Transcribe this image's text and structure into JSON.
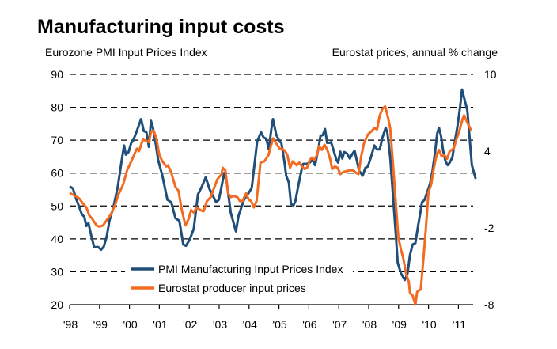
{
  "chart_data": {
    "type": "line",
    "title": "Manufacturing input costs",
    "left_axis_label": "Eurozone PMI Input Prices Index",
    "right_axis_label": "Eurostat prices, annual % change",
    "left_ylim": [
      20,
      90
    ],
    "left_yticks": [
      "90",
      "80",
      "70",
      "60",
      "50",
      "40",
      "30",
      "20"
    ],
    "left_ytick_values": [
      90,
      80,
      70,
      60,
      50,
      40,
      30,
      20
    ],
    "right_ylim": [
      -8,
      10
    ],
    "right_yticks": [
      "10",
      "4",
      "-2",
      "-8"
    ],
    "right_ytick_values": [
      10,
      4,
      -2,
      -8
    ],
    "xlim": [
      1998.0,
      2011.6
    ],
    "xticks": [
      "'98",
      "'99",
      "'00",
      "'01",
      "'02",
      "'03",
      "'04",
      "'05",
      "'06",
      "'07",
      "'08",
      "'09",
      "'10",
      "'11"
    ],
    "xtick_values": [
      1998,
      1999,
      2000,
      2001,
      2002,
      2003,
      2004,
      2005,
      2006,
      2007,
      2008,
      2009,
      2010,
      2011
    ],
    "grid": "horizontal dashed",
    "legend_position": "bottom-center",
    "series": [
      {
        "name": "PMI Manufacturing Input Prices Index",
        "axis": "left",
        "color": "#1f4e79",
        "points": [
          [
            1998.03,
            55.8
          ],
          [
            1998.11,
            55.3
          ],
          [
            1998.23,
            51.9
          ],
          [
            1998.41,
            47.5
          ],
          [
            1998.49,
            46.7
          ],
          [
            1998.56,
            43.9
          ],
          [
            1998.63,
            44.8
          ],
          [
            1998.71,
            41.5
          ],
          [
            1998.82,
            37.5
          ],
          [
            1998.96,
            37.5
          ],
          [
            1999.05,
            36.7
          ],
          [
            1999.14,
            37.6
          ],
          [
            1999.24,
            40.7
          ],
          [
            1999.33,
            45.5
          ],
          [
            1999.46,
            49.5
          ],
          [
            1999.61,
            55.9
          ],
          [
            1999.73,
            63.2
          ],
          [
            1999.82,
            68.4
          ],
          [
            1999.88,
            65.6
          ],
          [
            1999.97,
            66.4
          ],
          [
            2000.06,
            69.2
          ],
          [
            2000.12,
            69.8
          ],
          [
            2000.23,
            72.4
          ],
          [
            2000.39,
            76.4
          ],
          [
            2000.48,
            72.8
          ],
          [
            2000.57,
            72.4
          ],
          [
            2000.65,
            68.0
          ],
          [
            2000.72,
            75.9
          ],
          [
            2000.79,
            73.6
          ],
          [
            2000.88,
            68.8
          ],
          [
            2000.96,
            64.0
          ],
          [
            2001.1,
            59.2
          ],
          [
            2001.27,
            51.9
          ],
          [
            2001.4,
            51.1
          ],
          [
            2001.54,
            46.3
          ],
          [
            2001.67,
            45.5
          ],
          [
            2001.8,
            38.3
          ],
          [
            2001.89,
            37.9
          ],
          [
            2002.02,
            39.9
          ],
          [
            2002.15,
            43.1
          ],
          [
            2002.29,
            53.5
          ],
          [
            2002.42,
            55.9
          ],
          [
            2002.55,
            58.7
          ],
          [
            2002.68,
            55.1
          ],
          [
            2002.77,
            53.5
          ],
          [
            2002.9,
            51.1
          ],
          [
            2002.99,
            51.9
          ],
          [
            2003.08,
            55.9
          ],
          [
            2003.17,
            60.0
          ],
          [
            2003.25,
            57.5
          ],
          [
            2003.39,
            47.9
          ],
          [
            2003.56,
            42.3
          ],
          [
            2003.65,
            47.1
          ],
          [
            2003.83,
            51.9
          ],
          [
            2004.01,
            54.3
          ],
          [
            2004.09,
            55.5
          ],
          [
            2004.27,
            69.6
          ],
          [
            2004.4,
            72.4
          ],
          [
            2004.49,
            70.8
          ],
          [
            2004.58,
            70.4
          ],
          [
            2004.66,
            67.2
          ],
          [
            2004.75,
            73.6
          ],
          [
            2004.8,
            76.4
          ],
          [
            2004.91,
            71.6
          ],
          [
            2005.02,
            69.6
          ],
          [
            2005.08,
            69.2
          ],
          [
            2005.18,
            63.6
          ],
          [
            2005.24,
            59.2
          ],
          [
            2005.33,
            57.1
          ],
          [
            2005.4,
            50.7
          ],
          [
            2005.48,
            50.1
          ],
          [
            2005.55,
            51.5
          ],
          [
            2005.64,
            55.9
          ],
          [
            2005.75,
            60.7
          ],
          [
            2005.81,
            62.8
          ],
          [
            2005.92,
            62.8
          ],
          [
            2006.03,
            63.2
          ],
          [
            2006.12,
            64.0
          ],
          [
            2006.21,
            62.4
          ],
          [
            2006.33,
            68.0
          ],
          [
            2006.39,
            71.3
          ],
          [
            2006.47,
            71.6
          ],
          [
            2006.54,
            73.4
          ],
          [
            2006.61,
            69.2
          ],
          [
            2006.68,
            69.2
          ],
          [
            2006.74,
            69.4
          ],
          [
            2006.83,
            66.8
          ],
          [
            2006.92,
            64.0
          ],
          [
            2006.98,
            63.2
          ],
          [
            2007.05,
            66.5
          ],
          [
            2007.12,
            64.4
          ],
          [
            2007.18,
            66.4
          ],
          [
            2007.27,
            66.0
          ],
          [
            2007.37,
            64.4
          ],
          [
            2007.44,
            65.6
          ],
          [
            2007.53,
            66.8
          ],
          [
            2007.62,
            63.2
          ],
          [
            2007.68,
            60.7
          ],
          [
            2007.8,
            59.2
          ],
          [
            2007.89,
            61.6
          ],
          [
            2007.97,
            62.0
          ],
          [
            2008.06,
            64.4
          ],
          [
            2008.19,
            68.4
          ],
          [
            2008.28,
            67.2
          ],
          [
            2008.37,
            67.2
          ],
          [
            2008.46,
            70.8
          ],
          [
            2008.57,
            73.8
          ],
          [
            2008.63,
            72.0
          ],
          [
            2008.72,
            64.8
          ],
          [
            2008.81,
            53.5
          ],
          [
            2008.9,
            42.3
          ],
          [
            2008.97,
            32.7
          ],
          [
            2009.08,
            29.5
          ],
          [
            2009.21,
            27.5
          ],
          [
            2009.3,
            29.5
          ],
          [
            2009.38,
            35.1
          ],
          [
            2009.47,
            38.3
          ],
          [
            2009.56,
            38.7
          ],
          [
            2009.65,
            43.9
          ],
          [
            2009.74,
            48.7
          ],
          [
            2009.78,
            51.1
          ],
          [
            2009.87,
            51.9
          ],
          [
            2009.96,
            54.3
          ],
          [
            2010.05,
            56.7
          ],
          [
            2010.13,
            60.4
          ],
          [
            2010.22,
            66.4
          ],
          [
            2010.29,
            72.0
          ],
          [
            2010.35,
            73.8
          ],
          [
            2010.42,
            71.2
          ],
          [
            2010.49,
            66.8
          ],
          [
            2010.57,
            63.6
          ],
          [
            2010.64,
            62.4
          ],
          [
            2010.71,
            63.2
          ],
          [
            2010.8,
            64.8
          ],
          [
            2010.88,
            69.6
          ],
          [
            2010.97,
            74.4
          ],
          [
            2011.06,
            80.4
          ],
          [
            2011.12,
            85.4
          ],
          [
            2011.3,
            79.0
          ],
          [
            2011.45,
            62.4
          ],
          [
            2011.57,
            58.5
          ]
        ]
      },
      {
        "name": "Eurostat producer input prices",
        "axis": "right",
        "color": "#f26b21",
        "points": [
          [
            1998.03,
            0.7
          ],
          [
            1998.19,
            0.5
          ],
          [
            1998.32,
            0.3
          ],
          [
            1998.45,
            -0.1
          ],
          [
            1998.56,
            -0.4
          ],
          [
            1998.65,
            -1.0
          ],
          [
            1998.76,
            -1.3
          ],
          [
            1998.9,
            -1.8
          ],
          [
            1998.99,
            -1.9
          ],
          [
            1999.12,
            -1.8
          ],
          [
            1999.24,
            -1.4
          ],
          [
            1999.39,
            -0.9
          ],
          [
            1999.52,
            -0.2
          ],
          [
            1999.63,
            0.6
          ],
          [
            1999.79,
            1.4
          ],
          [
            1999.92,
            2.5
          ],
          [
            2000.06,
            3.2
          ],
          [
            2000.19,
            3.9
          ],
          [
            2000.25,
            4.2
          ],
          [
            2000.32,
            4.0
          ],
          [
            2000.45,
            4.9
          ],
          [
            2000.57,
            4.8
          ],
          [
            2000.65,
            4.7
          ],
          [
            2000.72,
            5.5
          ],
          [
            2000.81,
            5.6
          ],
          [
            2000.9,
            5.0
          ],
          [
            2001.0,
            3.7
          ],
          [
            2001.1,
            3.2
          ],
          [
            2001.23,
            2.8
          ],
          [
            2001.29,
            2.9
          ],
          [
            2001.4,
            2.3
          ],
          [
            2001.54,
            1.2
          ],
          [
            2001.64,
            0.9
          ],
          [
            2001.75,
            -0.6
          ],
          [
            2001.87,
            -1.8
          ],
          [
            2001.98,
            -1.3
          ],
          [
            2002.06,
            -0.6
          ],
          [
            2002.15,
            -0.8
          ],
          [
            2002.25,
            -0.4
          ],
          [
            2002.37,
            -0.6
          ],
          [
            2002.48,
            -0.7
          ],
          [
            2002.59,
            0.1
          ],
          [
            2002.72,
            0.4
          ],
          [
            2002.81,
            1.0
          ],
          [
            2002.94,
            1.8
          ],
          [
            2003.08,
            2.2
          ],
          [
            2003.12,
            2.7
          ],
          [
            2003.21,
            2.5
          ],
          [
            2003.3,
            0.7
          ],
          [
            2003.39,
            0.4
          ],
          [
            2003.47,
            0.5
          ],
          [
            2003.61,
            0.4
          ],
          [
            2003.69,
            0.1
          ],
          [
            2003.78,
            0.1
          ],
          [
            2003.9,
            0.7
          ],
          [
            2003.99,
            0.2
          ],
          [
            2004.07,
            0.1
          ],
          [
            2004.16,
            -0.4
          ],
          [
            2004.25,
            0.1
          ],
          [
            2004.38,
            3.1
          ],
          [
            2004.51,
            3.2
          ],
          [
            2004.65,
            3.7
          ],
          [
            2004.8,
            5.0
          ],
          [
            2004.91,
            4.6
          ],
          [
            2005.02,
            4.2
          ],
          [
            2005.11,
            4.2
          ],
          [
            2005.2,
            4.0
          ],
          [
            2005.28,
            3.7
          ],
          [
            2005.37,
            2.7
          ],
          [
            2005.46,
            3.2
          ],
          [
            2005.59,
            2.9
          ],
          [
            2005.68,
            3.1
          ],
          [
            2005.77,
            2.8
          ],
          [
            2005.86,
            2.6
          ],
          [
            2005.94,
            2.7
          ],
          [
            2006.03,
            3.3
          ],
          [
            2006.1,
            3.5
          ],
          [
            2006.18,
            3.3
          ],
          [
            2006.27,
            3.7
          ],
          [
            2006.34,
            4.4
          ],
          [
            2006.43,
            4.1
          ],
          [
            2006.52,
            4.5
          ],
          [
            2006.62,
            4.1
          ],
          [
            2006.71,
            3.4
          ],
          [
            2006.78,
            2.6
          ],
          [
            2006.87,
            2.8
          ],
          [
            2006.96,
            2.7
          ],
          [
            2007.05,
            2.2
          ],
          [
            2007.18,
            2.4
          ],
          [
            2007.36,
            2.5
          ],
          [
            2007.49,
            2.5
          ],
          [
            2007.58,
            2.3
          ],
          [
            2007.66,
            2.2
          ],
          [
            2007.75,
            3.6
          ],
          [
            2007.84,
            4.6
          ],
          [
            2007.97,
            5.3
          ],
          [
            2008.11,
            5.6
          ],
          [
            2008.19,
            5.8
          ],
          [
            2008.28,
            5.7
          ],
          [
            2008.37,
            6.8
          ],
          [
            2008.46,
            7.3
          ],
          [
            2008.55,
            7.5
          ],
          [
            2008.63,
            6.8
          ],
          [
            2008.72,
            5.8
          ],
          [
            2008.81,
            3.1
          ],
          [
            2008.9,
            0.2
          ],
          [
            2008.99,
            -2.7
          ],
          [
            2009.08,
            -3.7
          ],
          [
            2009.16,
            -4.4
          ],
          [
            2009.25,
            -5.6
          ],
          [
            2009.34,
            -6.2
          ],
          [
            2009.38,
            -7.1
          ],
          [
            2009.47,
            -7.3
          ],
          [
            2009.56,
            -8.0
          ],
          [
            2009.62,
            -7.0
          ],
          [
            2009.74,
            -6.8
          ],
          [
            2009.83,
            -4.4
          ],
          [
            2009.91,
            -2.1
          ],
          [
            2010.0,
            0.8
          ],
          [
            2010.09,
            1.4
          ],
          [
            2010.18,
            2.7
          ],
          [
            2010.27,
            3.7
          ],
          [
            2010.35,
            4.1
          ],
          [
            2010.44,
            3.6
          ],
          [
            2010.53,
            3.7
          ],
          [
            2010.62,
            3.4
          ],
          [
            2010.71,
            4.0
          ],
          [
            2010.84,
            4.2
          ],
          [
            2010.93,
            4.9
          ],
          [
            2011.02,
            5.5
          ],
          [
            2011.15,
            6.6
          ],
          [
            2011.19,
            6.8
          ],
          [
            2011.24,
            6.5
          ],
          [
            2011.41,
            5.7
          ]
        ]
      }
    ]
  }
}
